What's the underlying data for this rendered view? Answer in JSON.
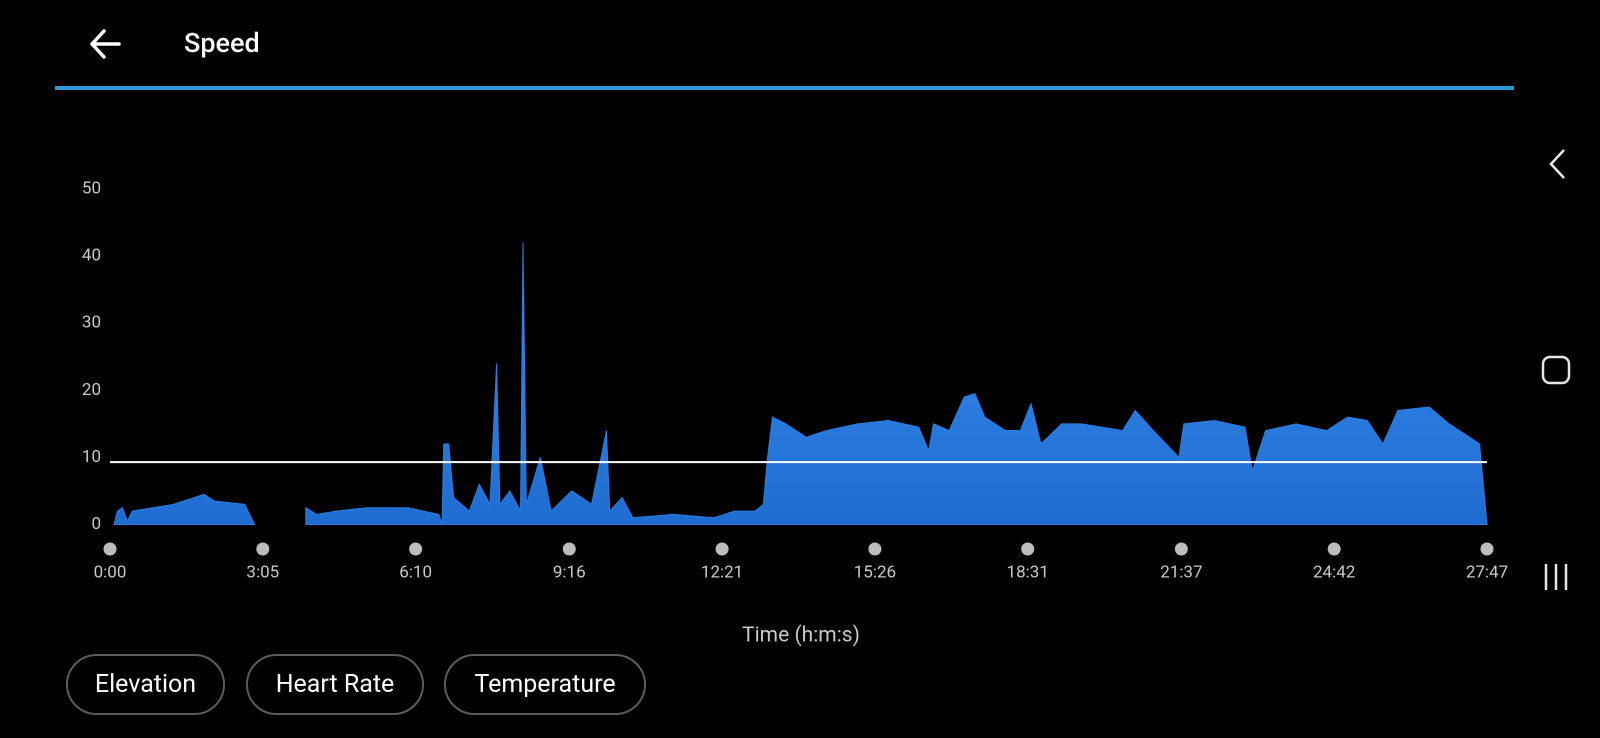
{
  "header": {
    "title": "Speed"
  },
  "chart_data": {
    "type": "area",
    "x_label": "Time (h:m:s)",
    "x": [
      5,
      9,
      15,
      21,
      27,
      52,
      77,
      114,
      126,
      163,
      175,
      200,
      237,
      250,
      274,
      311,
      361,
      398,
      402,
      404,
      410,
      416,
      435,
      447,
      460,
      468,
      472,
      484,
      497,
      500,
      504,
      521,
      534,
      559,
      583,
      601,
      605,
      620,
      633,
      682,
      731,
      756,
      781,
      791,
      796,
      802,
      818,
      843,
      867,
      905,
      942,
      979,
      991,
      997,
      1016,
      1034,
      1047,
      1059,
      1084,
      1102,
      1115,
      1127,
      1152,
      1176,
      1201,
      1226,
      1241,
      1263,
      1294,
      1300,
      1337,
      1374,
      1383,
      1399,
      1436,
      1473,
      1498,
      1522,
      1541,
      1559,
      1597,
      1621,
      1646,
      1658,
      1667
    ],
    "series": [
      {
        "color": "#2a7ee2",
        "values": [
          0,
          2,
          2.5,
          0.5,
          2,
          2.5,
          3,
          4.5,
          3.5,
          3,
          0,
          null,
          2.5,
          1.5,
          2,
          2.5,
          2.5,
          1.5,
          0,
          12,
          12,
          4,
          2,
          6,
          3,
          24,
          3,
          5,
          2,
          42,
          3,
          10,
          2,
          5,
          3,
          14,
          2,
          4,
          1,
          1.5,
          1,
          2,
          2,
          3,
          10,
          16,
          15,
          13,
          14,
          15,
          15.5,
          14.5,
          11,
          15,
          14,
          19,
          19.5,
          16,
          14,
          14,
          18,
          12,
          15,
          15,
          14.5,
          14,
          17,
          14,
          10,
          15,
          15.5,
          14.5,
          8,
          14,
          15,
          14,
          16,
          15.5,
          12,
          17,
          17.5,
          15,
          13,
          12,
          0
        ]
      }
    ],
    "reference_line": 9.3,
    "xlim": [
      0,
      1667
    ],
    "xticks": [
      {
        "value": 0,
        "label": "0:00"
      },
      {
        "value": 185,
        "label": "3:05"
      },
      {
        "value": 370,
        "label": "6:10"
      },
      {
        "value": 556,
        "label": "9:16"
      },
      {
        "value": 741,
        "label": "12:21"
      },
      {
        "value": 926,
        "label": "15:26"
      },
      {
        "value": 1111,
        "label": "18:31"
      },
      {
        "value": 1297,
        "label": "21:37"
      },
      {
        "value": 1482,
        "label": "24:42"
      },
      {
        "value": 1667,
        "label": "27:47"
      }
    ],
    "ylim": [
      0,
      50
    ],
    "yticks": [
      0,
      10,
      20,
      30,
      40,
      50
    ]
  },
  "buttons": [
    "Elevation",
    "Heart Rate",
    "Temperature"
  ]
}
